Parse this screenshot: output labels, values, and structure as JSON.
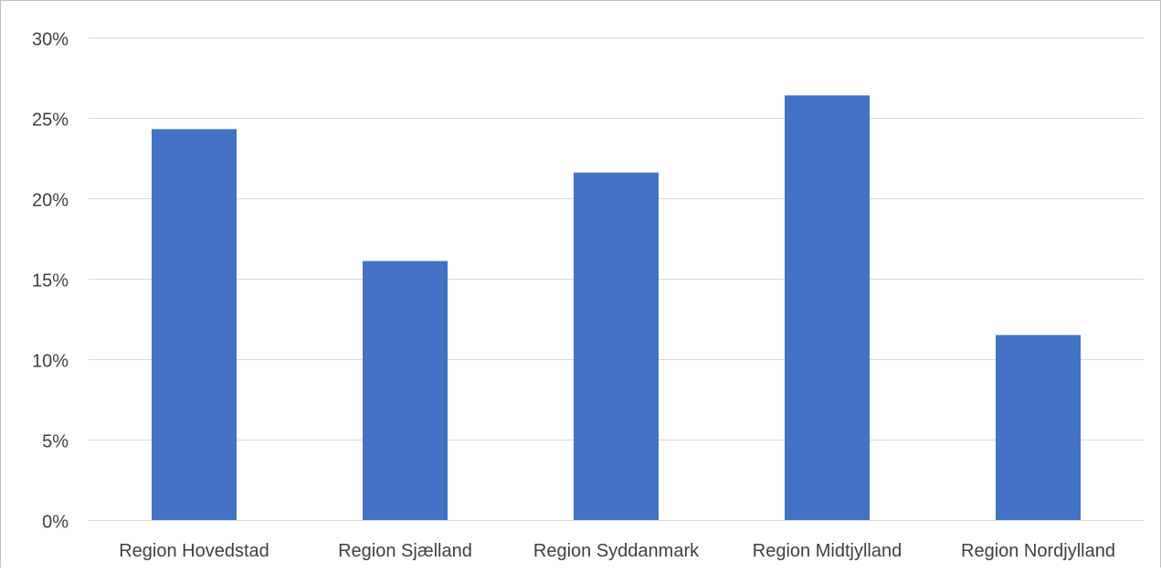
{
  "chart_data": {
    "type": "bar",
    "title": "",
    "xlabel": "",
    "ylabel": "",
    "categories": [
      "Region Hovedstad",
      "Region Sjælland",
      "Region Syddanmark",
      "Region Midtjylland",
      "Region Nordjylland"
    ],
    "values": [
      0.243,
      0.161,
      0.216,
      0.264,
      0.115
    ],
    "ylim": [
      0,
      0.3
    ],
    "yticks": [
      {
        "value": 0.0,
        "label": "0%"
      },
      {
        "value": 0.05,
        "label": "5%"
      },
      {
        "value": 0.1,
        "label": "10%"
      },
      {
        "value": 0.15,
        "label": "15%"
      },
      {
        "value": 0.2,
        "label": "20%"
      },
      {
        "value": 0.25,
        "label": "25%"
      },
      {
        "value": 0.3,
        "label": "30%"
      }
    ],
    "grid": true,
    "legend": "none",
    "colors": {
      "bar": "#4472c4",
      "grid": "#d9d9d9",
      "axis_text": "#404040"
    }
  }
}
